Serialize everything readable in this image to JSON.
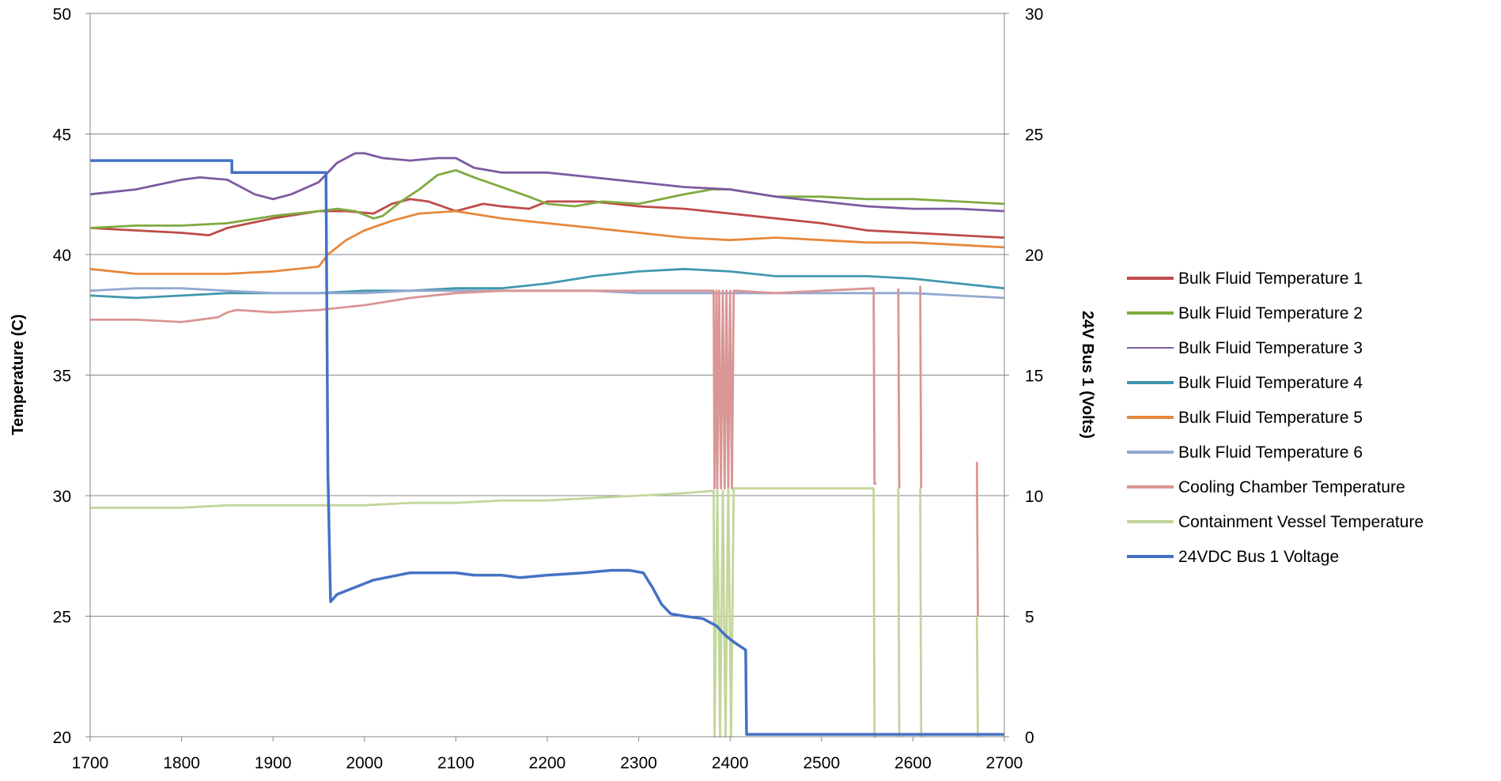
{
  "chart_data": {
    "type": "line",
    "title": "",
    "xlabel": "",
    "ylabel": "Temperature (C)",
    "y2label": "24V Bus 1 (Volts)",
    "xlim": [
      1700,
      2700
    ],
    "ylim": [
      20,
      50
    ],
    "y2lim": [
      0,
      30
    ],
    "x_ticks": [
      1700,
      1800,
      1900,
      2000,
      2100,
      2200,
      2300,
      2400,
      2500,
      2600,
      2700
    ],
    "y_ticks": [
      20,
      25,
      30,
      35,
      40,
      45,
      50
    ],
    "y2_ticks": [
      0,
      5,
      10,
      15,
      20,
      25,
      30
    ],
    "grid": "horizontal",
    "legend_position": "right",
    "series": [
      {
        "name": "Bulk Fluid Temperature 1",
        "axis": "left",
        "color": "#be4b48",
        "x": [
          1700,
          1750,
          1800,
          1830,
          1850,
          1900,
          1950,
          1980,
          2010,
          2030,
          2050,
          2070,
          2100,
          2130,
          2150,
          2180,
          2200,
          2250,
          2300,
          2350,
          2400,
          2450,
          2500,
          2550,
          2600,
          2650,
          2700
        ],
        "y": [
          41.1,
          41.0,
          40.9,
          40.8,
          41.1,
          41.5,
          41.8,
          41.8,
          41.7,
          42.1,
          42.3,
          42.2,
          41.8,
          42.1,
          42.0,
          41.9,
          42.2,
          42.2,
          42.0,
          41.9,
          41.7,
          41.5,
          41.3,
          41.0,
          40.9,
          40.8,
          40.7
        ]
      },
      {
        "name": "Bulk Fluid Temperature 2",
        "axis": "left",
        "color": "#7faa3f",
        "x": [
          1700,
          1750,
          1800,
          1850,
          1900,
          1950,
          1970,
          1990,
          2010,
          2020,
          2040,
          2060,
          2080,
          2100,
          2120,
          2150,
          2180,
          2200,
          2230,
          2260,
          2300,
          2350,
          2380,
          2400,
          2450,
          2500,
          2550,
          2600,
          2650,
          2700
        ],
        "y": [
          41.1,
          41.2,
          41.2,
          41.3,
          41.6,
          41.8,
          41.9,
          41.8,
          41.5,
          41.6,
          42.2,
          42.7,
          43.3,
          43.5,
          43.2,
          42.8,
          42.4,
          42.1,
          42.0,
          42.2,
          42.1,
          42.5,
          42.7,
          42.7,
          42.4,
          42.4,
          42.3,
          42.3,
          42.2,
          42.1
        ]
      },
      {
        "name": "Bulk Fluid Temperature 3",
        "axis": "left",
        "color": "#7e5aa2",
        "x": [
          1700,
          1750,
          1800,
          1820,
          1850,
          1880,
          1900,
          1920,
          1950,
          1970,
          1990,
          2000,
          2020,
          2050,
          2080,
          2100,
          2120,
          2150,
          2200,
          2250,
          2300,
          2350,
          2400,
          2450,
          2500,
          2550,
          2600,
          2650,
          2700
        ],
        "y": [
          42.5,
          42.7,
          43.1,
          43.2,
          43.1,
          42.5,
          42.3,
          42.5,
          43.0,
          43.8,
          44.2,
          44.2,
          44.0,
          43.9,
          44.0,
          44.0,
          43.6,
          43.4,
          43.4,
          43.2,
          43.0,
          42.8,
          42.7,
          42.4,
          42.2,
          42.0,
          41.9,
          41.9,
          41.8
        ]
      },
      {
        "name": "Bulk Fluid Temperature 4",
        "axis": "left",
        "color": "#4198af",
        "x": [
          1700,
          1750,
          1800,
          1850,
          1900,
          1950,
          2000,
          2050,
          2100,
          2150,
          2200,
          2250,
          2300,
          2350,
          2400,
          2450,
          2500,
          2550,
          2600,
          2650,
          2700
        ],
        "y": [
          38.3,
          38.2,
          38.3,
          38.4,
          38.4,
          38.4,
          38.5,
          38.5,
          38.6,
          38.6,
          38.8,
          39.1,
          39.3,
          39.4,
          39.3,
          39.1,
          39.1,
          39.1,
          39.0,
          38.8,
          38.6
        ]
      },
      {
        "name": "Bulk Fluid Temperature 5",
        "axis": "left",
        "color": "#e7883a",
        "x": [
          1700,
          1750,
          1800,
          1850,
          1900,
          1950,
          1960,
          1980,
          2000,
          2030,
          2060,
          2100,
          2150,
          2200,
          2250,
          2300,
          2350,
          2400,
          2450,
          2500,
          2550,
          2600,
          2650,
          2700
        ],
        "y": [
          39.4,
          39.2,
          39.2,
          39.2,
          39.3,
          39.5,
          40.0,
          40.6,
          41.0,
          41.4,
          41.7,
          41.8,
          41.5,
          41.3,
          41.1,
          40.9,
          40.7,
          40.6,
          40.7,
          40.6,
          40.5,
          40.5,
          40.4,
          40.3
        ]
      },
      {
        "name": "Bulk Fluid Temperature 6",
        "axis": "left",
        "color": "#94a8d0",
        "x": [
          1700,
          1750,
          1800,
          1850,
          1900,
          1950,
          2000,
          2050,
          2100,
          2150,
          2200,
          2250,
          2300,
          2350,
          2400,
          2450,
          2500,
          2550,
          2600,
          2650,
          2700
        ],
        "y": [
          38.5,
          38.6,
          38.6,
          38.5,
          38.4,
          38.4,
          38.4,
          38.5,
          38.5,
          38.5,
          38.5,
          38.5,
          38.4,
          38.4,
          38.4,
          38.4,
          38.4,
          38.4,
          38.4,
          38.3,
          38.2
        ]
      },
      {
        "name": "Cooling Chamber Temperature",
        "axis": "left",
        "color": "#d99694",
        "x": [
          1700,
          1750,
          1800,
          1840,
          1850,
          1860,
          1900,
          1950,
          2000,
          2050,
          2100,
          2150,
          2200,
          2250,
          2300,
          2350,
          2382,
          2383,
          2385,
          2386,
          2388,
          2390,
          2392,
          2394,
          2396,
          2398,
          2400,
          2402,
          2404,
          2406,
          2450,
          2500,
          2557,
          2558,
          2560,
          2561,
          2583,
          2584,
          2585,
          2586,
          2607,
          2608,
          2609,
          2610,
          2669,
          2670,
          2671,
          2672
        ],
        "y": [
          37.3,
          37.3,
          37.2,
          37.4,
          37.6,
          37.7,
          37.6,
          37.7,
          37.9,
          38.2,
          38.4,
          38.5,
          38.5,
          38.5,
          38.5,
          38.5,
          38.5,
          30.3,
          38.5,
          30.3,
          38.5,
          30.3,
          38.5,
          30.3,
          38.5,
          30.3,
          38.5,
          30.3,
          38.5,
          38.5,
          38.4,
          38.5,
          38.6,
          30.5,
          30.5,
          null,
          null,
          38.6,
          30.3,
          null,
          null,
          38.7,
          30.3,
          null,
          null,
          31.4,
          25.0,
          null
        ]
      },
      {
        "name": "Containment Vessel Temperature",
        "axis": "left",
        "color": "#c3d69b",
        "x": [
          1700,
          1750,
          1800,
          1850,
          1900,
          1950,
          2000,
          2050,
          2100,
          2150,
          2200,
          2250,
          2300,
          2350,
          2382,
          2383,
          2386,
          2389,
          2392,
          2395,
          2398,
          2401,
          2404,
          2406,
          2450,
          2500,
          2557,
          2558,
          2560,
          2561,
          2583,
          2584,
          2585,
          2586,
          2607,
          2608,
          2609,
          2610,
          2669,
          2670,
          2671,
          2672
        ],
        "y": [
          29.5,
          29.5,
          29.5,
          29.6,
          29.6,
          29.6,
          29.6,
          29.7,
          29.7,
          29.8,
          29.8,
          29.9,
          30.0,
          30.1,
          30.2,
          20.0,
          30.2,
          20.0,
          30.2,
          20.0,
          30.3,
          20.0,
          30.3,
          30.3,
          30.3,
          30.3,
          30.3,
          20.0,
          20.0,
          null,
          null,
          30.3,
          20.0,
          null,
          null,
          30.3,
          20.0,
          null,
          null,
          25.0,
          20.0,
          null
        ]
      },
      {
        "name": "24VDC Bus 1 Voltage",
        "axis": "right",
        "color": "#4472c4",
        "x": [
          1700,
          1854,
          1855,
          1855,
          1900,
          1958,
          1958,
          1960,
          1963,
          1970,
          1990,
          2010,
          2050,
          2100,
          2120,
          2150,
          2170,
          2200,
          2240,
          2270,
          2290,
          2305,
          2315,
          2325,
          2335,
          2350,
          2370,
          2385,
          2395,
          2405,
          2417,
          2418,
          2420,
          2430,
          2500,
          2600,
          2700
        ],
        "y": [
          23.9,
          23.9,
          23.9,
          23.4,
          23.4,
          23.4,
          23.4,
          11.0,
          5.6,
          5.9,
          6.2,
          6.5,
          6.8,
          6.8,
          6.7,
          6.7,
          6.6,
          6.7,
          6.8,
          6.9,
          6.9,
          6.8,
          6.2,
          5.5,
          5.1,
          5.0,
          4.9,
          4.6,
          4.2,
          3.9,
          3.6,
          0.1,
          0.1,
          0.1,
          0.1,
          0.1,
          0.1
        ]
      }
    ]
  }
}
